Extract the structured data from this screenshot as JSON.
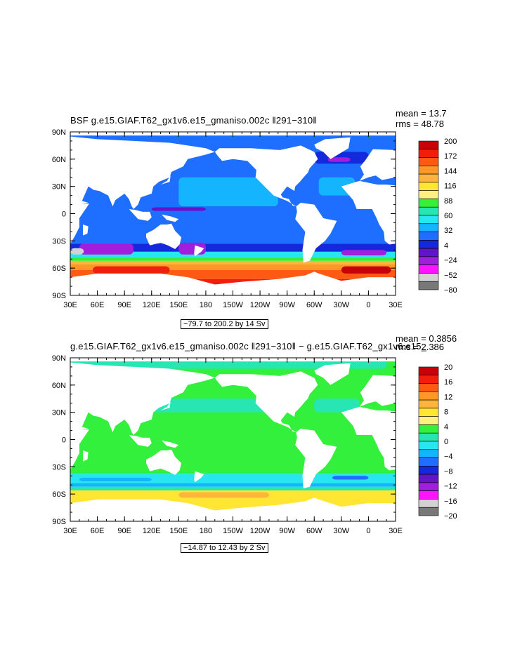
{
  "panels": [
    {
      "title": "BSF g.e15.GIAF.T62_gx1v6.e15_gmaniso.002c ‖291−310‖",
      "mean_text": "mean = 13.7",
      "rms_text": "rms = 48.78",
      "caption": "−79.7 to 200.2 by 14 Sv",
      "colorbar_labels": [
        "200",
        "172",
        "144",
        "116",
        "88",
        "60",
        "32",
        "4",
        "−24",
        "−52",
        "−80"
      ],
      "colors": [
        "#c8000a",
        "#f01e0a",
        "#ff5a14",
        "#ff9628",
        "#ffb43c",
        "#ffe632",
        "#fff082",
        "#32f03c",
        "#28e6b4",
        "#28e6f0",
        "#14b4ff",
        "#1e6eff",
        "#1428dc",
        "#6414c8",
        "#a01edc",
        "#ff14ff",
        "#d2d2d2",
        "#787878"
      ]
    },
    {
      "title": "g.e15.GIAF.T62_gx1v6.e15_gmaniso.002c ‖291−310‖ − g.e15.GIAF.T62_gx1v6.e15_",
      "mean_text": "mean = 0.3856",
      "rms_text": "rms = 2.386",
      "caption": "−14.87 to 12.43 by 2 Sv",
      "colorbar_labels": [
        "20",
        "16",
        "12",
        "8",
        "4",
        "0",
        "−4",
        "−8",
        "−12",
        "−16",
        "−20"
      ],
      "colors": [
        "#c8000a",
        "#f01e0a",
        "#ff5a14",
        "#ff9628",
        "#ffb43c",
        "#ffe632",
        "#fff082",
        "#32f03c",
        "#28e6b4",
        "#28e6f0",
        "#14b4ff",
        "#1e6eff",
        "#1428dc",
        "#6414c8",
        "#a01edc",
        "#ff14ff",
        "#d2d2d2",
        "#787878"
      ]
    }
  ],
  "lat_labels": [
    "90N",
    "60N",
    "30N",
    "0",
    "30S",
    "60S",
    "90S"
  ],
  "lon_labels": [
    "30E",
    "60E",
    "90E",
    "120E",
    "150E",
    "180",
    "150W",
    "120W",
    "90W",
    "60W",
    "30W",
    "0",
    "30E"
  ]
}
